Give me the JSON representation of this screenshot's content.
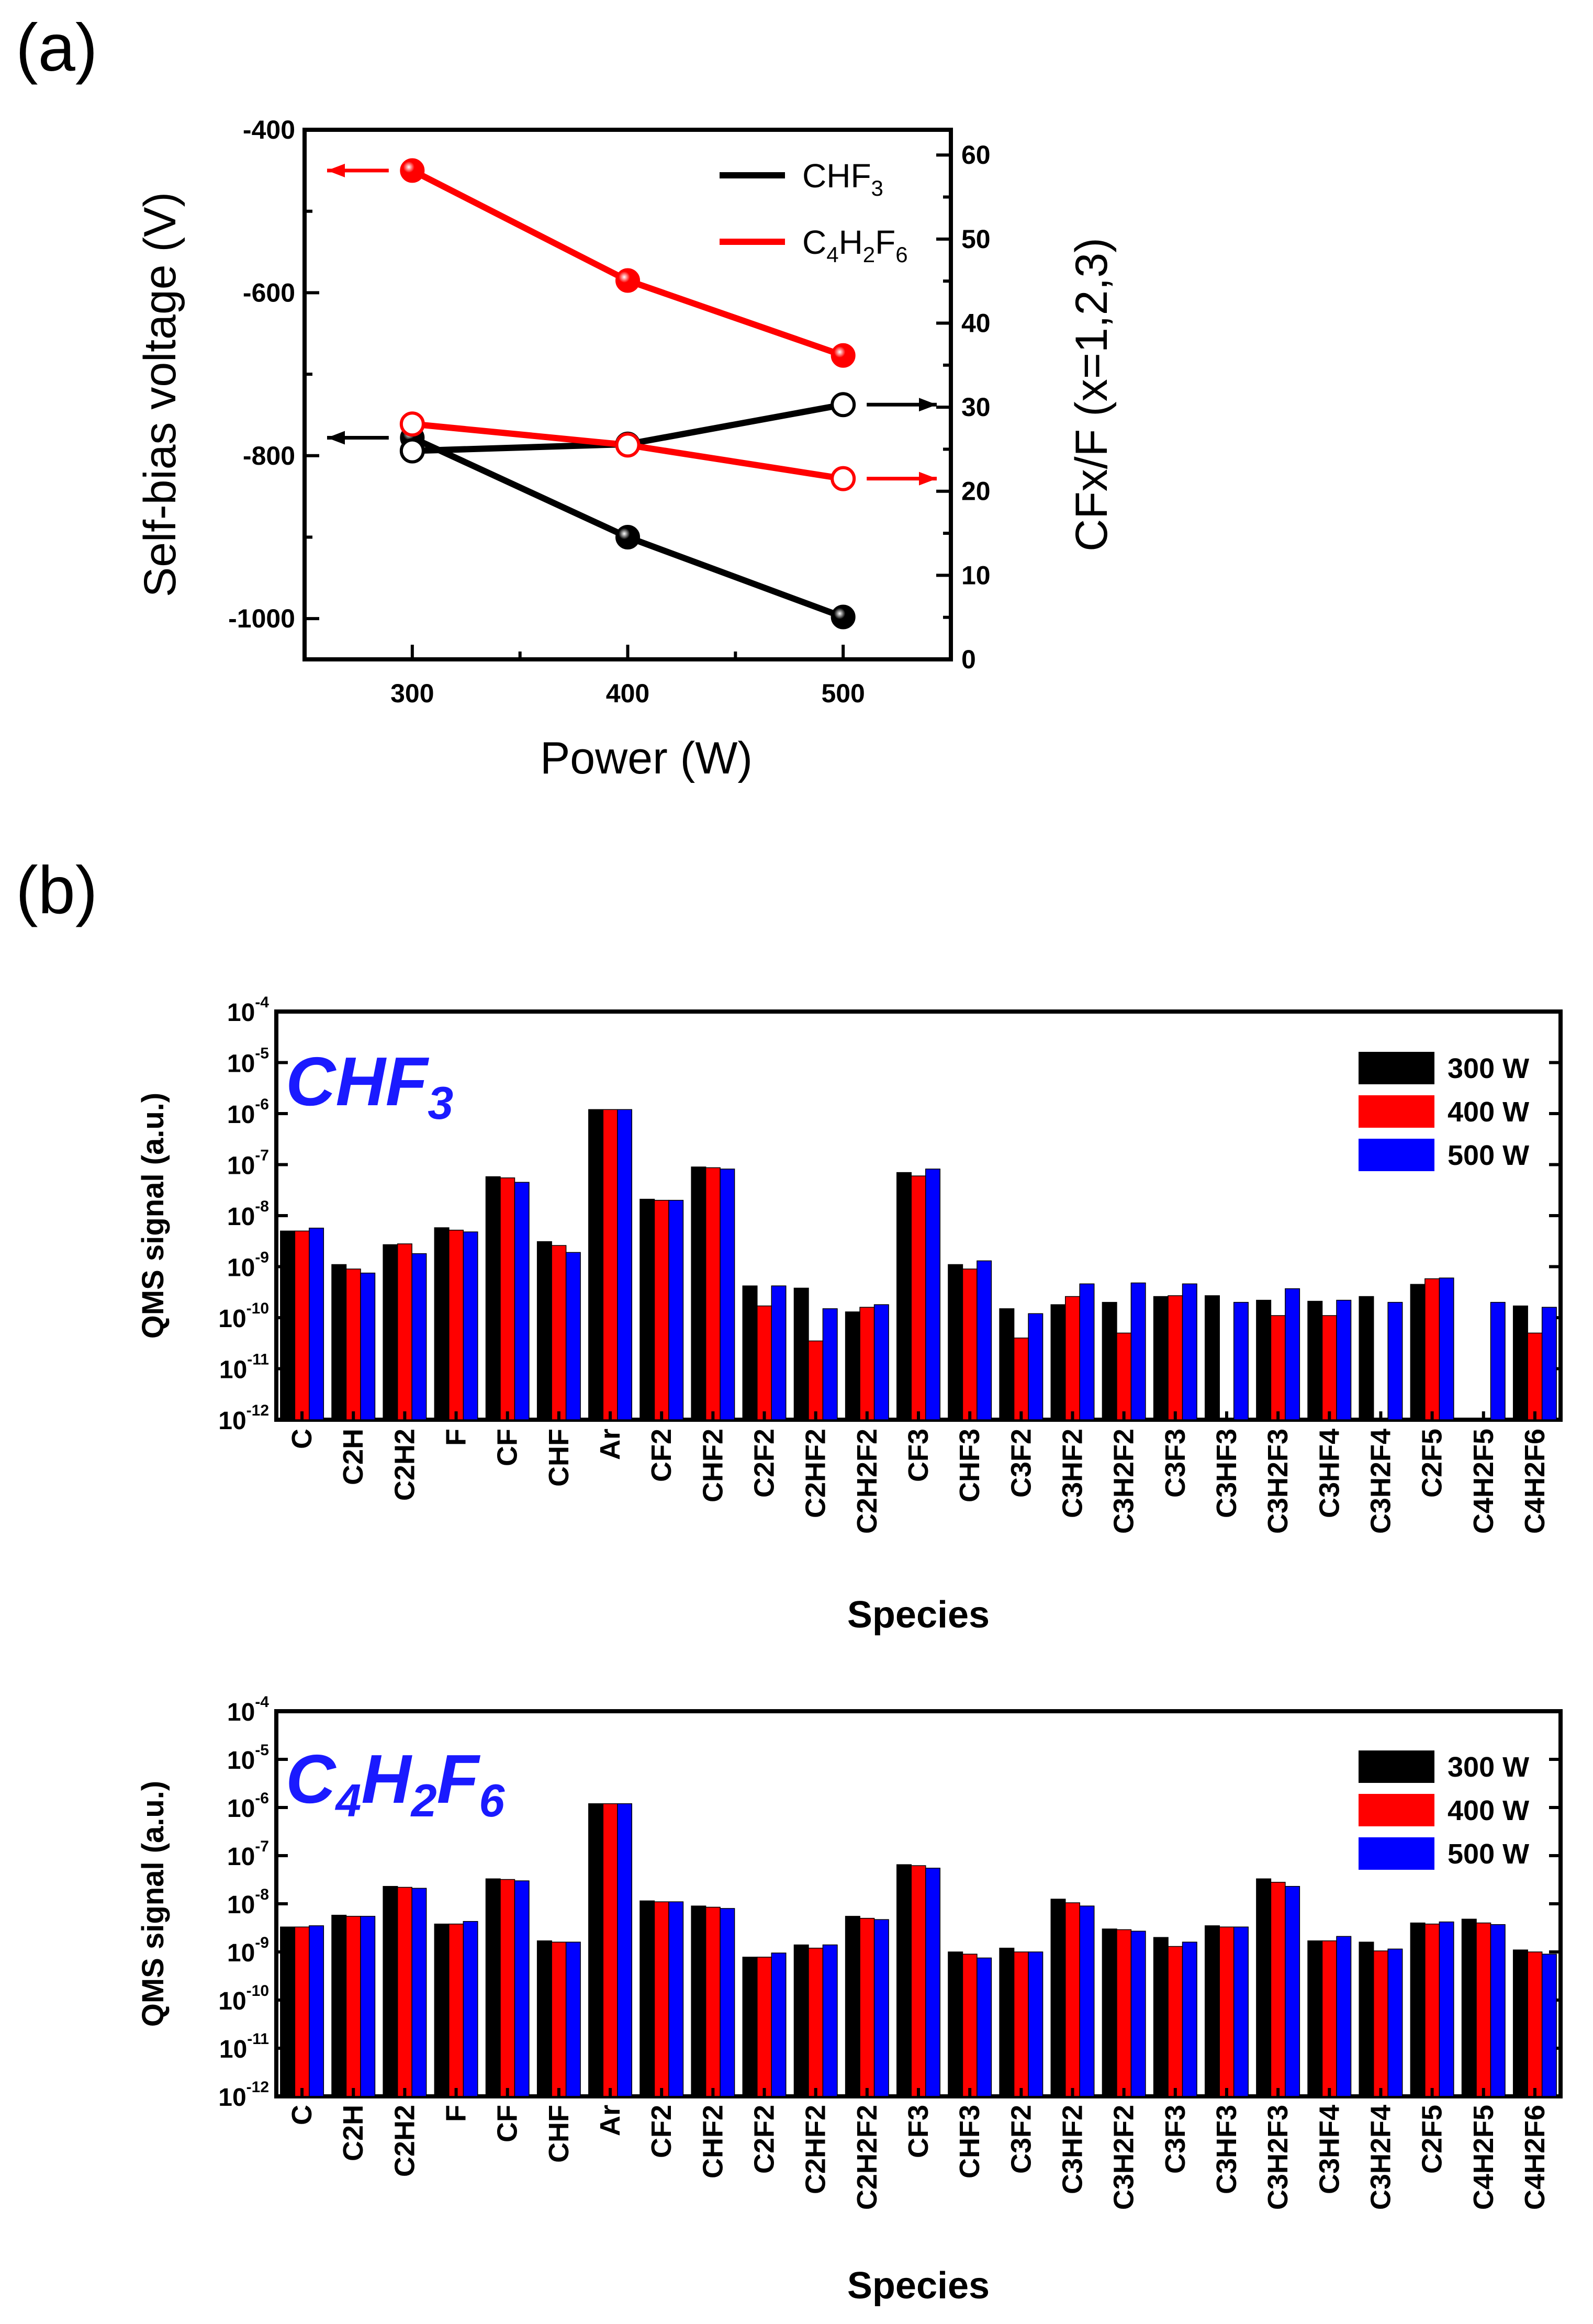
{
  "panel_a": {
    "label": "(a)",
    "chart_data": {
      "type": "line",
      "title": "",
      "xlabel": "Power (W)",
      "ylabel_left": "Self-bias voltage (V)",
      "ylabel_right": "CFx/F (x=1,2,3)",
      "x": [
        300,
        400,
        500
      ],
      "x_ticks": [
        "300",
        "400",
        "500"
      ],
      "xlim": [
        250,
        550
      ],
      "ylim_left": [
        -1050,
        -400
      ],
      "ylim_right": [
        0,
        63
      ],
      "y_ticks_left": [
        "-400",
        "-600",
        "-800",
        "-1000"
      ],
      "y_ticks_right": [
        "0",
        "10",
        "20",
        "30",
        "40",
        "50",
        "60"
      ],
      "series": [
        {
          "name": "CHF3 self-bias",
          "gas": "CHF3",
          "axis": "left",
          "marker": "filled",
          "color": "#000000",
          "values": [
            -778,
            -900,
            -998
          ]
        },
        {
          "name": "CHF3 CFx/F",
          "gas": "CHF3",
          "axis": "right",
          "marker": "open",
          "color": "#000000",
          "values": [
            24.8,
            25.6,
            30.3
          ]
        },
        {
          "name": "C4H2F6 self-bias",
          "gas": "C4H2F6",
          "axis": "left",
          "marker": "filled",
          "color": "#ff0000",
          "values": [
            -450,
            -585,
            -677
          ]
        },
        {
          "name": "C4H2F6 CFx/F",
          "gas": "C4H2F6",
          "axis": "right",
          "marker": "open",
          "color": "#ff0000",
          "values": [
            28.0,
            25.5,
            21.5
          ]
        }
      ],
      "legend": [
        {
          "base": "CHF",
          "sub": "3",
          "color": "#000000"
        },
        {
          "base": "C",
          "sub1": "4",
          "mid": "H",
          "sub2": "2",
          "end": "F",
          "sub3": "6",
          "color": "#ff0000"
        }
      ],
      "legend_position": "top-right"
    }
  },
  "panel_b": {
    "label": "(b)",
    "categories": [
      "C",
      "C2H",
      "C2H2",
      "F",
      "CF",
      "CHF",
      "Ar",
      "CF2",
      "CHF2",
      "C2F2",
      "C2HF2",
      "C2H2F2",
      "CF3",
      "CHF3",
      "C3F2",
      "C3HF2",
      "C3H2F2",
      "C3F3",
      "C3HF3",
      "C3H2F3",
      "C3HF4",
      "C3H2F4",
      "C2F5",
      "C4H2F5",
      "C4H2F6"
    ],
    "xlabel": "Species",
    "ylabel": "QMS signal (a.u.)",
    "y_tick_base": "10",
    "y_tick_exponents": [
      "-4",
      "-5",
      "-6",
      "-7",
      "-8",
      "-9",
      "-10",
      "-11",
      "-12"
    ],
    "ylim_log10": [
      -12,
      -4
    ],
    "legend": [
      "300 W",
      "400 W",
      "500 W"
    ],
    "colors": [
      "#000000",
      "#ff0000",
      "#0000ff"
    ],
    "charts": [
      {
        "type": "bar",
        "title": {
          "base": "CHF",
          "sub": "3"
        },
        "series": [
          {
            "name": "300 W",
            "values": [
              5e-09,
              1.1e-09,
              2.7e-09,
              5.8e-09,
              5.8e-08,
              3.1e-09,
              1.2e-06,
              2.1e-08,
              9e-08,
              4.2e-10,
              3.8e-10,
              1.3e-10,
              7e-08,
              1.1e-09,
              1.5e-10,
              1.8e-10,
              2e-10,
              2.6e-10,
              2.7e-10,
              2.2e-10,
              2.1e-10,
              2.6e-10,
              4.5e-10,
              null,
              1.7e-10
            ]
          },
          {
            "name": "400 W",
            "values": [
              5e-09,
              9e-10,
              2.8e-09,
              5.2e-09,
              5.5e-08,
              2.6e-09,
              1.2e-06,
              2e-08,
              8.7e-08,
              1.7e-10,
              3.5e-11,
              1.6e-10,
              6e-08,
              9e-10,
              4e-11,
              2.6e-10,
              5e-11,
              2.7e-10,
              null,
              1.1e-10,
              1.1e-10,
              null,
              5.8e-10,
              null,
              5e-11
            ]
          },
          {
            "name": "500 W",
            "values": [
              5.7e-09,
              7.5e-10,
              1.8e-09,
              4.8e-09,
              4.5e-08,
              1.9e-09,
              1.2e-06,
              2e-08,
              8.2e-08,
              4.2e-10,
              1.5e-10,
              1.8e-10,
              8.2e-08,
              1.3e-09,
              1.2e-10,
              4.6e-10,
              4.8e-10,
              4.6e-10,
              2e-10,
              3.7e-10,
              2.2e-10,
              2e-10,
              6e-10,
              2e-10,
              1.6e-10
            ]
          }
        ]
      },
      {
        "type": "bar",
        "title": {
          "base": "C",
          "sub1": "4",
          "mid": "H",
          "sub2": "2",
          "end": "F",
          "sub3": "6"
        },
        "series": [
          {
            "name": "300 W",
            "values": [
              3.3e-09,
              5.8e-09,
              2.3e-08,
              3.8e-09,
              3.3e-08,
              1.7e-09,
              1.2e-06,
              1.15e-08,
              9e-09,
              7.8e-10,
              1.4e-09,
              5.5e-09,
              6.5e-08,
              1e-09,
              1.2e-09,
              1.25e-08,
              3e-09,
              2e-09,
              3.5e-09,
              3.3e-08,
              1.7e-09,
              1.6e-09,
              4e-09,
              4.8e-09,
              1.1e-09
            ]
          },
          {
            "name": "400 W",
            "values": [
              3.3e-09,
              5.5e-09,
              2.2e-08,
              3.8e-09,
              3.2e-08,
              1.6e-09,
              1.2e-06,
              1.1e-08,
              8.5e-09,
              7.8e-10,
              1.2e-09,
              5e-09,
              6.2e-08,
              9e-10,
              1e-09,
              1.05e-08,
              2.9e-09,
              1.3e-09,
              3.3e-09,
              2.8e-08,
              1.7e-09,
              1.05e-09,
              3.8e-09,
              4e-09,
              1e-09
            ]
          },
          {
            "name": "500 W",
            "values": [
              3.5e-09,
              5.5e-09,
              2.1e-08,
              4.3e-09,
              3e-08,
              1.6e-09,
              1.2e-06,
              1.1e-08,
              8e-09,
              9.5e-10,
              1.4e-09,
              4.7e-09,
              5.5e-08,
              7.5e-10,
              1e-09,
              9e-09,
              2.7e-09,
              1.6e-09,
              3.3e-09,
              2.3e-08,
              2.1e-09,
              1.15e-09,
              4.2e-09,
              3.7e-09,
              9e-10
            ]
          }
        ]
      }
    ]
  }
}
